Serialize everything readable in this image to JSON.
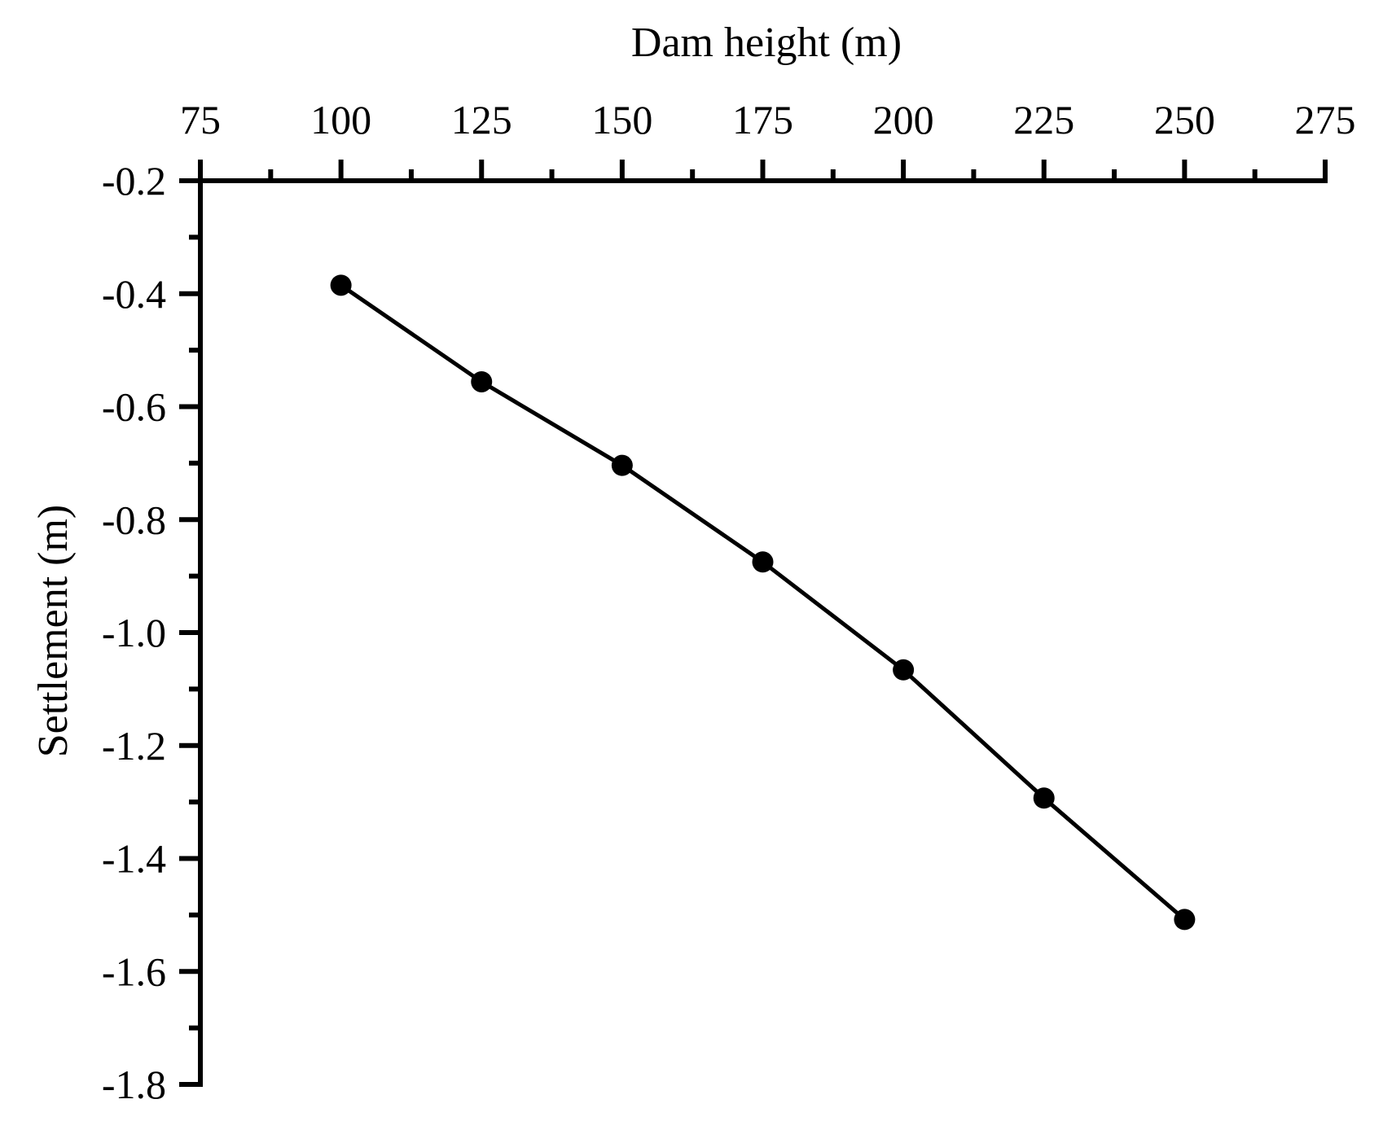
{
  "chart_data": {
    "type": "line",
    "title": "",
    "xlabel": "Dam height (m)",
    "ylabel": "Settlement (m)",
    "x_axis_position": "top",
    "xlim": [
      75,
      275
    ],
    "ylim": [
      -1.8,
      -0.2
    ],
    "xticks": [
      75,
      100,
      125,
      150,
      175,
      200,
      225,
      250,
      275
    ],
    "xtick_labels": [
      "75",
      "100",
      "125",
      "150",
      "175",
      "200",
      "225",
      "250",
      "275"
    ],
    "yticks": [
      -0.2,
      -0.4,
      -0.6,
      -0.8,
      -1.0,
      -1.2,
      -1.4,
      -1.6,
      -1.8
    ],
    "ytick_labels": [
      "-0.2",
      "-0.4",
      "-0.6",
      "-0.8",
      "-1.0",
      "-1.2",
      "-1.4",
      "-1.6",
      "-1.8"
    ],
    "grid": false,
    "legend": "none",
    "series": [
      {
        "x": [
          100,
          125,
          150,
          175,
          200,
          225,
          250
        ],
        "y": [
          -0.385,
          -0.556,
          -0.704,
          -0.875,
          -1.066,
          -1.293,
          -1.508
        ],
        "color": "#000000",
        "marker": "circle"
      }
    ]
  }
}
